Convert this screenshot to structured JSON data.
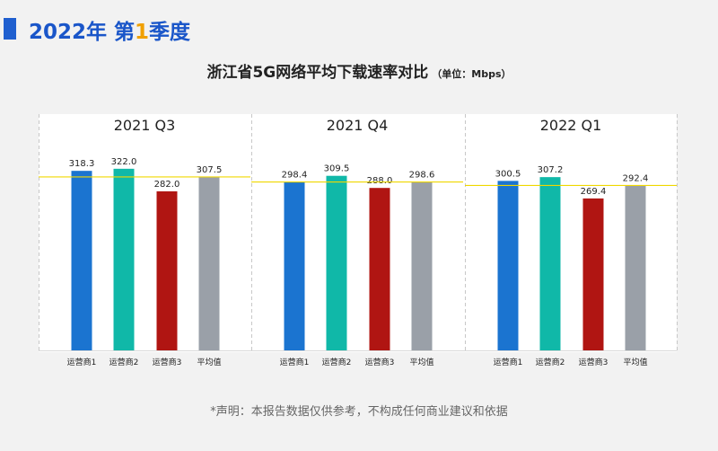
{
  "header": {
    "year": "2022年",
    "quarter_prefix": "第",
    "quarter_num": "1",
    "quarter_suffix": "季度"
  },
  "title": "浙江省5G网络平均下载速率对比",
  "unit": "（单位：Mbps）",
  "disclaimer": "*声明：本报告数据仅供参考，不构成任何商业建议和依据",
  "colors": {
    "operator1": "#1b74d0",
    "operator2": "#10b8a8",
    "operator3": "#b01512",
    "average": "#9aa0a8",
    "avg_line": "#f0d800"
  },
  "chart_data": {
    "type": "bar",
    "categories": [
      "运营商1",
      "运营商2",
      "运营商3",
      "平均值"
    ],
    "ylim": [
      0,
      360
    ],
    "grid": false,
    "panels": [
      {
        "label": "2021 Q3",
        "values": [
          318.3,
          322.0,
          282.0,
          307.5
        ]
      },
      {
        "label": "2021 Q4",
        "values": [
          298.4,
          309.5,
          288.0,
          298.6
        ]
      },
      {
        "label": "2022 Q1",
        "values": [
          300.5,
          307.2,
          269.4,
          292.4
        ]
      }
    ]
  }
}
